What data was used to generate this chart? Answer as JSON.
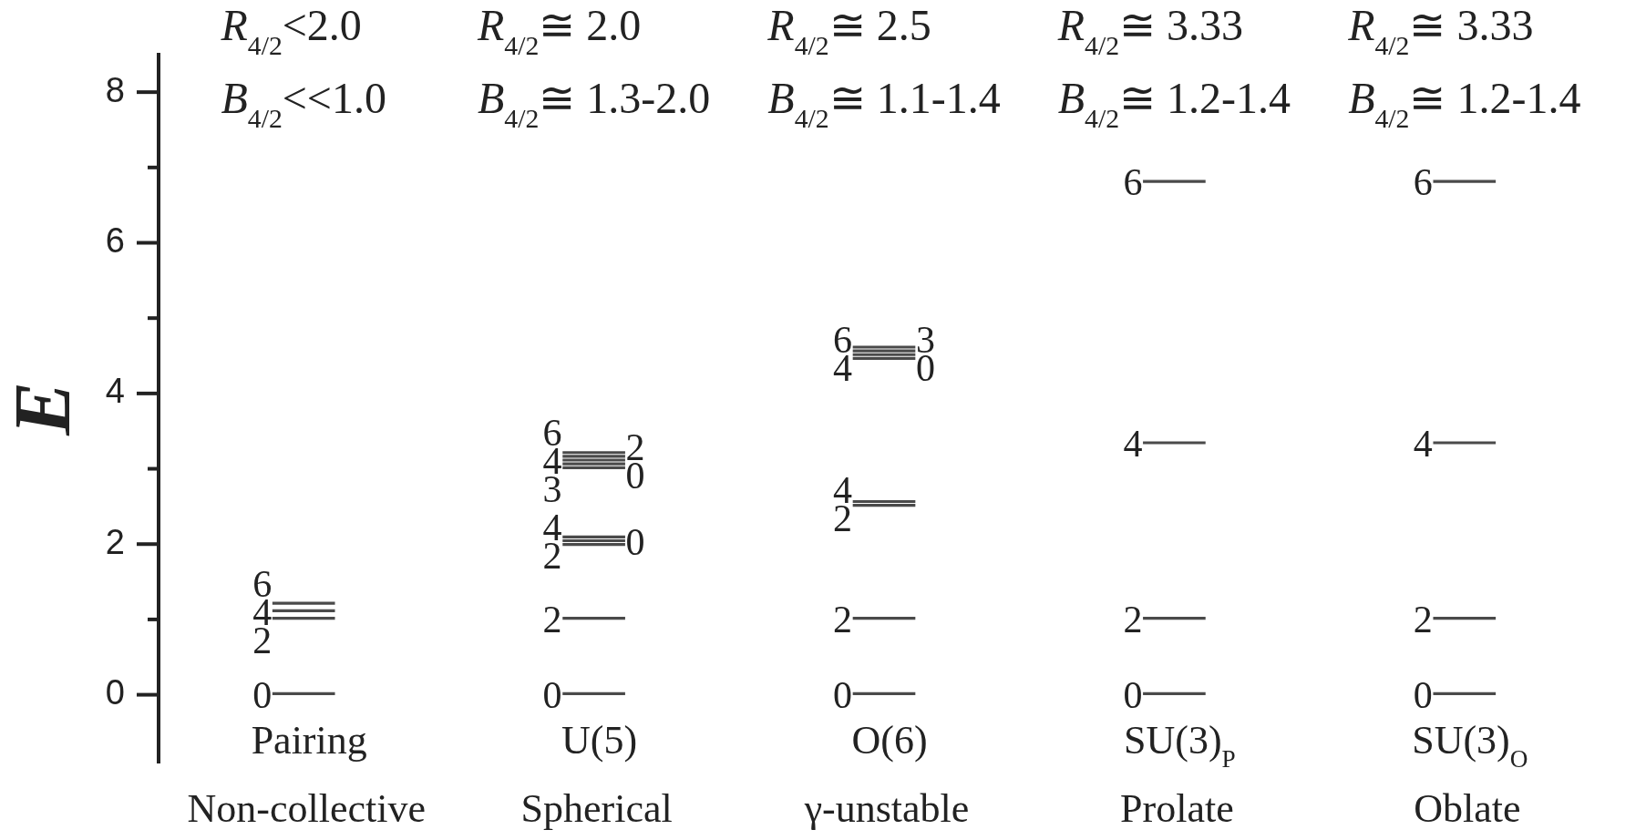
{
  "chart_data": {
    "type": "bar",
    "categories": [
      "Pairing",
      "U(5)",
      "O(6)",
      "SU(3)$_{P}$",
      "SU(3)$_{O}$"
    ],
    "ylabel": "E",
    "ylim": [
      -0.9,
      8.5
    ],
    "yticks": [
      0,
      {
        "value": 1,
        "label": null
      },
      2,
      {
        "value": 3,
        "label": null
      },
      4,
      {
        "value": 5,
        "label": null
      },
      6,
      {
        "value": 7,
        "label": null
      },
      8
    ],
    "series": [
      {
        "color": "#4a4a4a",
        "base": [
          0,
          0,
          0,
          0,
          0
        ],
        "values": [
          0.03,
          0.03,
          0.03,
          0.03,
          0.03
        ]
      },
      {
        "color": "#4a4a4a",
        "base": [
          1.0,
          1.0,
          1.0,
          1.0,
          1.0
        ],
        "values": [
          0.03,
          0.03,
          0.03,
          0.03,
          0.03
        ]
      },
      {
        "color": "#4a4a4a",
        "base": [
          1.1,
          1.98,
          2.5,
          3.33,
          3.33
        ],
        "values": [
          0.03,
          0.03,
          0.03,
          0.03,
          0.03
        ]
      },
      {
        "color": "#4a4a4a",
        "base": [
          1.2,
          2.03,
          2.55,
          6.8,
          6.8
        ],
        "values": [
          0.03,
          0.03,
          0.03,
          0.03,
          0.03
        ]
      },
      {
        "color": "#4a4a4a",
        "base": [
          null,
          2.08,
          4.45,
          null,
          null
        ],
        "values": [
          null,
          0.03,
          0.03,
          null,
          null
        ]
      },
      {
        "color": "#4a4a4a",
        "base": [
          null,
          3.0,
          4.5,
          null,
          null
        ],
        "values": [
          null,
          0.03,
          0.03,
          null,
          null
        ]
      },
      {
        "color": "#4a4a4a",
        "base": [
          null,
          3.05,
          4.55,
          null,
          null
        ],
        "values": [
          null,
          0.03,
          0.03,
          null,
          null
        ]
      },
      {
        "color": "#4a4a4a",
        "base": [
          null,
          3.1,
          4.6,
          null,
          null
        ],
        "values": [
          null,
          0.03,
          0.03,
          null,
          null
        ]
      },
      {
        "color": "#4a4a4a",
        "base": [
          null,
          3.15,
          null,
          null,
          null
        ],
        "values": [
          null,
          0.03,
          null,
          null,
          null
        ]
      },
      {
        "color": "#4a4a4a",
        "base": [
          null,
          3.2,
          null,
          null,
          null
        ],
        "values": [
          null,
          0.03,
          null,
          null,
          null
        ]
      }
    ],
    "annotations": [
      "R$_{4/2}$<2.0",
      "R$_{4/2}$≅ 2.0",
      "R$_{4/2}$≅ 2.5",
      "R$_{4/2}$≅ 3.33",
      "R$_{4/2}$≅ 3.33",
      "B$_{4/2}$<<1.0",
      "B$_{4/2}$≅ 1.3-2.0",
      "B$_{4/2}$≅ 1.1-1.4",
      "B$_{4/2}$≅ 1.2-1.4",
      "B$_{4/2}$≅ 1.2-1.4",
      "Non-collective",
      "Spherical",
      "γ-unstable",
      "Prolate",
      "Oblate",
      {
        "text": "0",
        "x": "Pairing",
        "y": 0
      },
      {
        "text": "2",
        "x": "Pairing",
        "y": 1.0
      },
      {
        "text": "4",
        "x": "Pairing",
        "y": 1.1
      },
      {
        "text": "6",
        "x": "Pairing",
        "y": 1.2
      },
      {
        "text": "0",
        "x": "U(5)",
        "y": 0
      },
      {
        "text": "2",
        "x": "U(5)",
        "y": 1.0
      },
      {
        "text": "2",
        "x": "U(5)",
        "y": 1.98
      },
      {
        "text": "0",
        "x": "U(5)",
        "y": 2.03
      },
      {
        "text": "4",
        "x": "U(5)",
        "y": 2.08
      },
      {
        "text": "3",
        "x": "U(5)",
        "y": 3.0
      },
      {
        "text": "0",
        "x": "U(5)",
        "y": 3.05
      },
      {
        "text": "4",
        "x": "U(5)",
        "y": 3.1
      },
      {
        "text": "2",
        "x": "U(5)",
        "y": 3.15
      },
      {
        "text": "6",
        "x": "U(5)",
        "y": 3.2
      },
      {
        "text": "0",
        "x": "O(6)",
        "y": 0
      },
      {
        "text": "2",
        "x": "O(6)",
        "y": 1.0
      },
      {
        "text": "2",
        "x": "O(6)",
        "y": 2.5
      },
      {
        "text": "4",
        "x": "O(6)",
        "y": 2.55
      },
      {
        "text": "0",
        "x": "O(6)",
        "y": 4.45
      },
      {
        "text": "4",
        "x": "O(6)",
        "y": 4.5
      },
      {
        "text": "3",
        "x": "O(6)",
        "y": 4.55
      },
      {
        "text": "6",
        "x": "O(6)",
        "y": 4.6
      },
      {
        "text": "0",
        "x": "SU(3)$_{P}$",
        "y": 0
      },
      {
        "text": "2",
        "x": "SU(3)$_{P}$",
        "y": 1.0
      },
      {
        "text": "4",
        "x": "SU(3)$_{P}$",
        "y": 3.33
      },
      {
        "text": "6",
        "x": "SU(3)$_{P}$",
        "y": 6.8
      },
      {
        "text": "0",
        "x": "SU(3)$_{O}$",
        "y": 0
      },
      {
        "text": "2",
        "x": "SU(3)$_{O}$",
        "y": 1.0
      },
      {
        "text": "4",
        "x": "SU(3)$_{O}$",
        "y": 3.33
      },
      {
        "text": "6",
        "x": "SU(3)$_{O}$",
        "y": 6.8
      }
    ]
  }
}
